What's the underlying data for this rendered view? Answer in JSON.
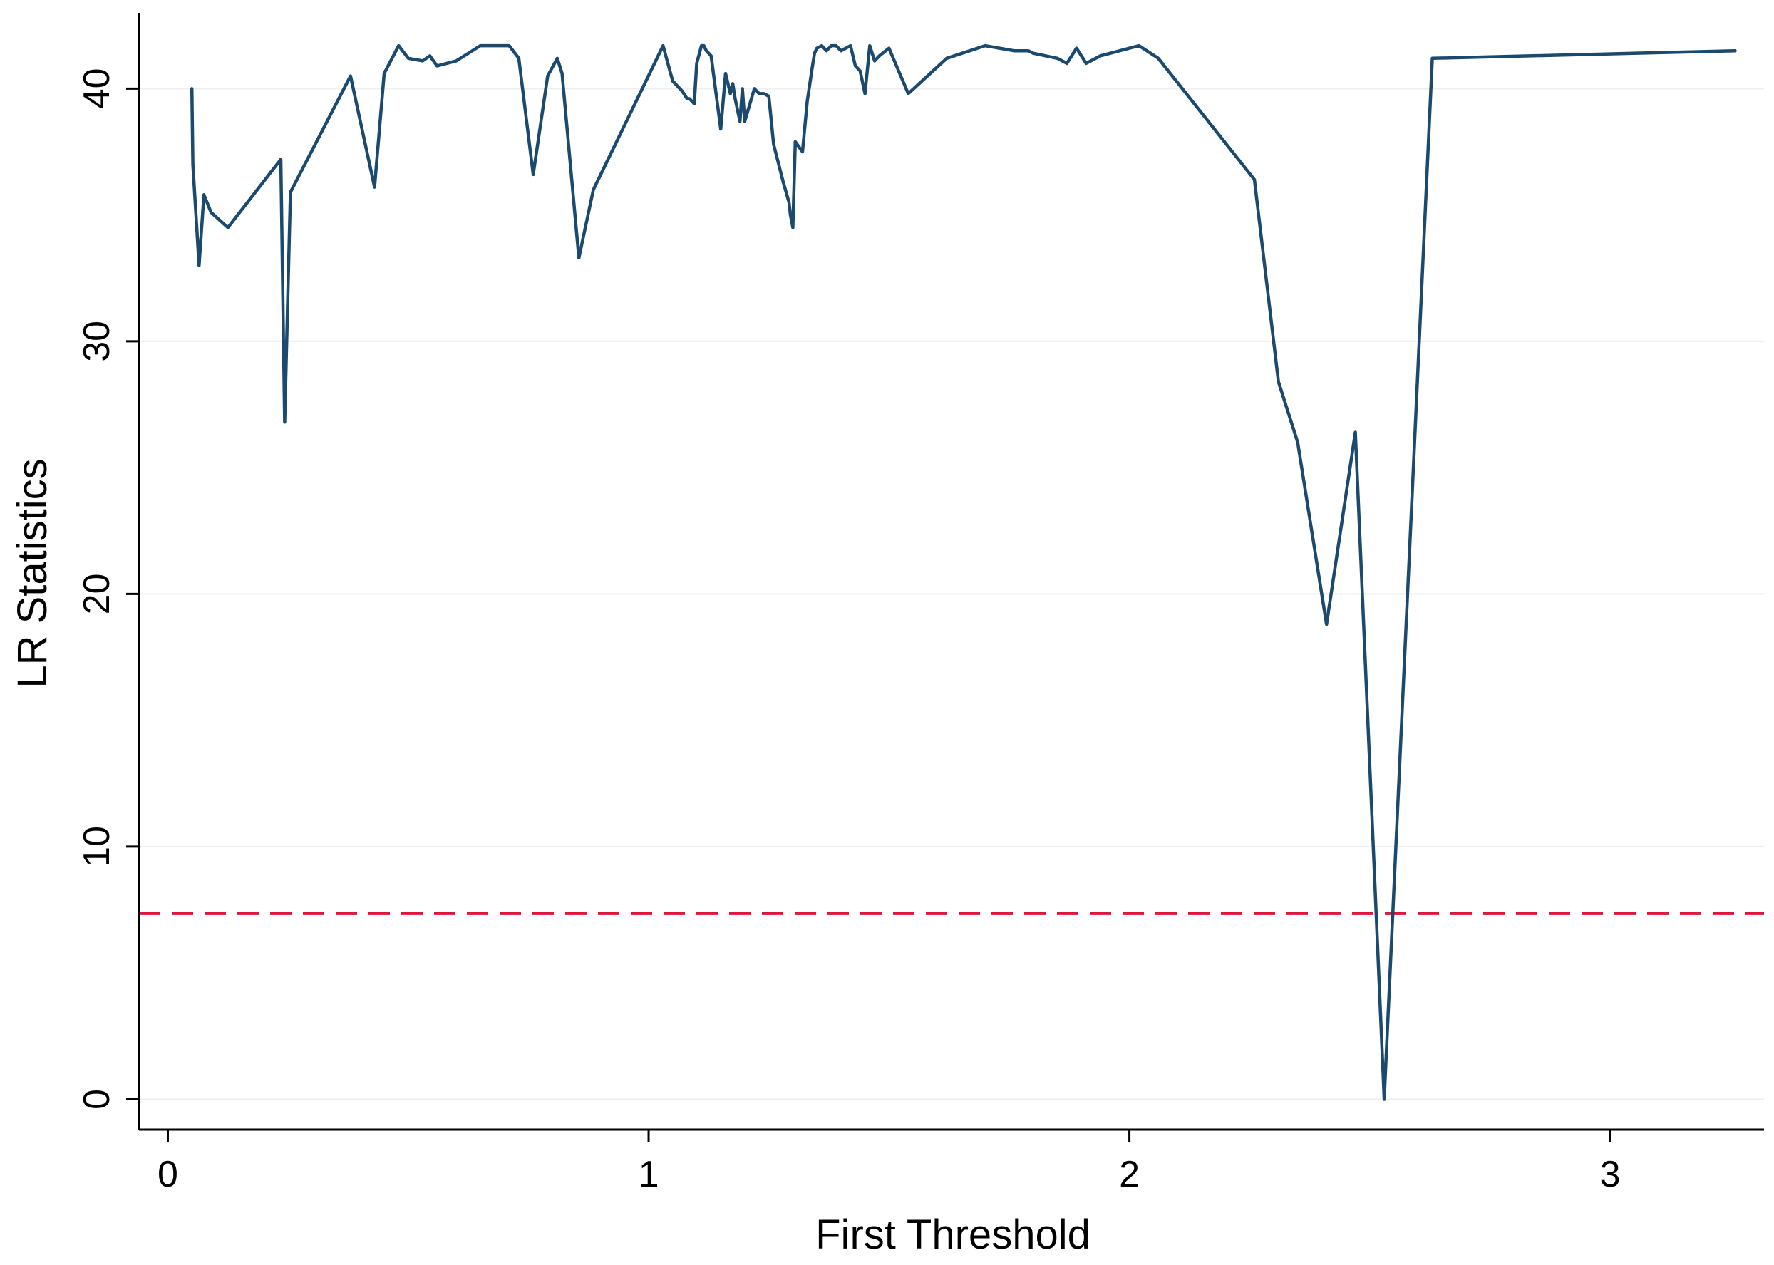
{
  "chart_data": {
    "type": "line",
    "title": "",
    "xlabel": "First Threshold",
    "ylabel": "LR Statistics",
    "xlim": [
      -0.06,
      3.32
    ],
    "ylim": [
      -1.2,
      43
    ],
    "x_ticks": [
      0,
      1,
      2,
      3
    ],
    "y_ticks": [
      0,
      10,
      20,
      30,
      40
    ],
    "x_tick_labels": [
      "0",
      "1",
      "2",
      "3"
    ],
    "y_tick_labels": [
      "0",
      "10",
      "20",
      "30",
      "40"
    ],
    "grid": "horizontal",
    "legend": "none",
    "series": [
      {
        "color": "#1b4a6e",
        "style": "solid",
        "x": [
          0.05,
          0.052,
          0.065,
          0.075,
          0.09,
          0.125,
          0.235,
          0.243,
          0.255,
          0.38,
          0.43,
          0.45,
          0.48,
          0.5,
          0.53,
          0.545,
          0.56,
          0.6,
          0.65,
          0.71,
          0.73,
          0.76,
          0.79,
          0.81,
          0.82,
          0.855,
          0.885,
          1.03,
          1.05,
          1.07,
          1.08,
          1.085,
          1.095,
          1.1,
          1.11,
          1.115,
          1.12,
          1.13,
          1.15,
          1.16,
          1.17,
          1.175,
          1.18,
          1.19,
          1.195,
          1.2,
          1.22,
          1.23,
          1.24,
          1.25,
          1.26,
          1.28,
          1.292,
          1.295,
          1.3,
          1.305,
          1.32,
          1.33,
          1.34,
          1.345,
          1.35,
          1.36,
          1.37,
          1.38,
          1.39,
          1.4,
          1.42,
          1.43,
          1.44,
          1.45,
          1.46,
          1.47,
          1.48,
          1.5,
          1.54,
          1.62,
          1.7,
          1.76,
          1.79,
          1.8,
          1.85,
          1.87,
          1.89,
          1.91,
          1.94,
          1.98,
          2.02,
          2.06,
          2.26,
          2.31,
          2.35,
          2.41,
          2.47,
          2.53,
          2.63,
          3.26
        ],
        "y": [
          40.0,
          37.0,
          33.0,
          35.8,
          35.1,
          34.5,
          37.2,
          26.8,
          35.9,
          40.5,
          36.1,
          40.6,
          41.7,
          41.2,
          41.1,
          41.3,
          40.9,
          41.1,
          41.7,
          41.7,
          41.2,
          36.6,
          40.5,
          41.2,
          40.6,
          33.3,
          36.0,
          41.7,
          40.3,
          39.9,
          39.6,
          39.6,
          39.4,
          41.0,
          41.7,
          41.7,
          41.5,
          41.3,
          38.4,
          40.6,
          39.8,
          40.2,
          39.6,
          38.7,
          40.0,
          38.7,
          40.0,
          39.8,
          39.8,
          39.7,
          37.8,
          36.3,
          35.5,
          35.0,
          34.5,
          37.9,
          37.5,
          39.5,
          40.8,
          41.4,
          41.6,
          41.7,
          41.5,
          41.7,
          41.7,
          41.5,
          41.7,
          40.9,
          40.7,
          39.8,
          41.7,
          41.1,
          41.3,
          41.6,
          39.8,
          41.2,
          41.7,
          41.5,
          41.5,
          41.4,
          41.2,
          41.0,
          41.6,
          41.0,
          41.3,
          41.5,
          41.7,
          41.2,
          36.4,
          28.4,
          26.0,
          18.8,
          26.4,
          0.0,
          41.2,
          41.5
        ]
      }
    ],
    "reference_line": {
      "y": 7.35,
      "color": "#e0143c",
      "style": "dashed"
    }
  }
}
